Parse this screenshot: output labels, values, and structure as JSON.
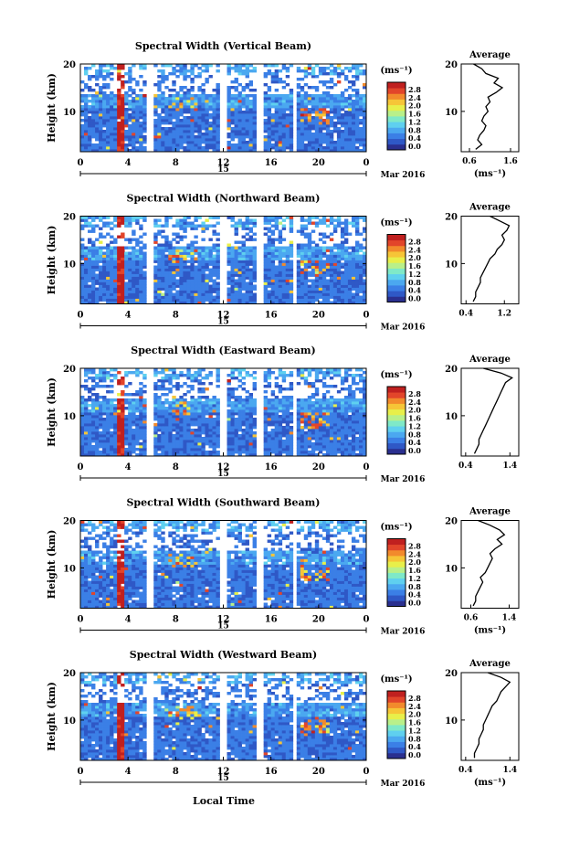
{
  "date_label": "Mar 2016",
  "day_label": "15",
  "xlabel": "Local Time",
  "ylabel": "Height (km)",
  "unit_label": "(ms⁻¹)",
  "avg_title": "Average",
  "colorbar": {
    "ticks": [
      "2.8",
      "2.4",
      "2.0",
      "1.6",
      "1.2",
      "0.8",
      "0.4",
      "0.0"
    ],
    "colors": [
      "#2a2f8f",
      "#2f58c6",
      "#3b7fe6",
      "#4ba8f0",
      "#5fd0ef",
      "#7fe9c8",
      "#b9f08a",
      "#e8ef4a",
      "#f6c537",
      "#f28a2c",
      "#e2452a",
      "#c0201f"
    ]
  },
  "chart_data": [
    {
      "type": "heatmap",
      "title": "Spectral Width (Vertical Beam)",
      "x_ticks": [
        "0",
        "4",
        "8",
        "12",
        "16",
        "20",
        "0"
      ],
      "y_ticks": [
        "20",
        "10"
      ],
      "xlim": [
        0,
        24
      ],
      "ylim": [
        1.5,
        20
      ],
      "color_range": [
        0.0,
        2.8
      ],
      "data_gaps_hours": [
        [
          5.4,
          6.0
        ],
        [
          11.7,
          12.3
        ],
        [
          14.9,
          15.3
        ],
        [
          17.7,
          18.2
        ]
      ],
      "average_profile": {
        "x_ticks": [
          "0.6",
          "1.6"
        ],
        "y_ticks": [
          "20",
          "10"
        ],
        "xlim": [
          0.4,
          1.8
        ],
        "xlabel": "(ms⁻¹)",
        "height_km": [
          2,
          3,
          4,
          5,
          6,
          7,
          8,
          9,
          10,
          11,
          12,
          13,
          14,
          15,
          16,
          17,
          18,
          19,
          20
        ],
        "width_ms": [
          0.75,
          0.9,
          0.8,
          0.85,
          0.95,
          1.0,
          0.9,
          0.95,
          1.05,
          1.0,
          1.1,
          1.05,
          1.25,
          1.4,
          1.2,
          1.3,
          1.0,
          0.9,
          0.7
        ]
      }
    },
    {
      "type": "heatmap",
      "title": "Spectral Width (Northward Beam)",
      "x_ticks": [
        "0",
        "4",
        "8",
        "12",
        "16",
        "20",
        "0"
      ],
      "y_ticks": [
        "20",
        "10"
      ],
      "xlim": [
        0,
        24
      ],
      "ylim": [
        1.5,
        20
      ],
      "color_range": [
        0.0,
        2.8
      ],
      "data_gaps_hours": [
        [
          5.4,
          6.0
        ],
        [
          11.7,
          12.3
        ],
        [
          14.9,
          15.3
        ],
        [
          17.7,
          18.2
        ]
      ],
      "average_profile": {
        "x_ticks": [
          "0.4",
          "1.2"
        ],
        "y_ticks": [
          "20",
          "10"
        ],
        "xlim": [
          0.3,
          1.5
        ],
        "xlabel": "",
        "height_km": [
          2,
          3,
          4,
          5,
          6,
          7,
          8,
          9,
          10,
          11,
          12,
          13,
          14,
          15,
          16,
          17,
          18,
          19,
          20
        ],
        "width_ms": [
          0.55,
          0.6,
          0.6,
          0.65,
          0.7,
          0.7,
          0.75,
          0.8,
          0.85,
          0.9,
          1.0,
          1.05,
          1.15,
          1.2,
          1.15,
          1.25,
          1.3,
          1.1,
          0.9
        ]
      }
    },
    {
      "type": "heatmap",
      "title": "Spectral Width (Eastward Beam)",
      "x_ticks": [
        "0",
        "4",
        "8",
        "12",
        "16",
        "20",
        "0"
      ],
      "y_ticks": [
        "20",
        "10"
      ],
      "xlim": [
        0,
        24
      ],
      "ylim": [
        1.5,
        20
      ],
      "color_range": [
        0.0,
        2.8
      ],
      "data_gaps_hours": [
        [
          5.4,
          6.0
        ],
        [
          11.7,
          12.3
        ],
        [
          14.9,
          15.3
        ],
        [
          17.7,
          18.2
        ]
      ],
      "average_profile": {
        "x_ticks": [
          "0.4",
          "1.4"
        ],
        "y_ticks": [
          "20",
          "10"
        ],
        "xlim": [
          0.3,
          1.6
        ],
        "xlabel": "",
        "height_km": [
          2,
          3,
          4,
          5,
          6,
          7,
          8,
          9,
          10,
          11,
          12,
          13,
          14,
          15,
          16,
          17,
          18,
          19,
          20
        ],
        "width_ms": [
          0.6,
          0.65,
          0.7,
          0.7,
          0.75,
          0.8,
          0.85,
          0.9,
          0.95,
          1.0,
          1.05,
          1.1,
          1.15,
          1.2,
          1.25,
          1.3,
          1.45,
          1.2,
          0.8
        ]
      }
    },
    {
      "type": "heatmap",
      "title": "Spectral Width (Southward Beam)",
      "x_ticks": [
        "0",
        "4",
        "8",
        "12",
        "16",
        "20",
        "0"
      ],
      "y_ticks": [
        "20",
        "10"
      ],
      "xlim": [
        0,
        24
      ],
      "ylim": [
        1.5,
        20
      ],
      "color_range": [
        0.0,
        2.8
      ],
      "data_gaps_hours": [
        [
          5.4,
          6.0
        ],
        [
          11.7,
          12.3
        ],
        [
          14.9,
          15.3
        ],
        [
          17.7,
          18.2
        ]
      ],
      "average_profile": {
        "x_ticks": [
          "0.6",
          "1.4"
        ],
        "y_ticks": [
          "20",
          "10"
        ],
        "xlim": [
          0.4,
          1.6
        ],
        "xlabel": "(ms⁻¹)",
        "height_km": [
          2,
          3,
          4,
          5,
          6,
          7,
          8,
          9,
          10,
          11,
          12,
          13,
          14,
          15,
          16,
          17,
          18,
          19,
          20
        ],
        "width_ms": [
          0.65,
          0.7,
          0.7,
          0.75,
          0.8,
          0.85,
          0.8,
          0.9,
          0.95,
          1.0,
          1.05,
          1.0,
          1.1,
          1.25,
          1.15,
          1.3,
          1.2,
          1.0,
          0.75
        ]
      }
    },
    {
      "type": "heatmap",
      "title": "Spectral Width (Westward Beam)",
      "x_ticks": [
        "0",
        "4",
        "8",
        "12",
        "16",
        "20",
        "0"
      ],
      "y_ticks": [
        "20",
        "10"
      ],
      "xlim": [
        0,
        24
      ],
      "ylim": [
        1.5,
        20
      ],
      "color_range": [
        0.0,
        2.8
      ],
      "data_gaps_hours": [
        [
          5.4,
          6.0
        ],
        [
          11.7,
          12.3
        ],
        [
          14.9,
          15.3
        ],
        [
          17.7,
          18.2
        ]
      ],
      "average_profile": {
        "x_ticks": [
          "0.4",
          "1.4"
        ],
        "y_ticks": [
          "20",
          "10"
        ],
        "xlim": [
          0.3,
          1.6
        ],
        "xlabel": "(ms⁻¹)",
        "height_km": [
          2,
          3,
          4,
          5,
          6,
          7,
          8,
          9,
          10,
          11,
          12,
          13,
          14,
          15,
          16,
          17,
          18,
          19,
          20
        ],
        "width_ms": [
          0.6,
          0.6,
          0.65,
          0.7,
          0.7,
          0.75,
          0.8,
          0.8,
          0.85,
          0.9,
          0.95,
          1.0,
          1.1,
          1.15,
          1.2,
          1.3,
          1.4,
          1.2,
          0.9
        ]
      }
    }
  ]
}
